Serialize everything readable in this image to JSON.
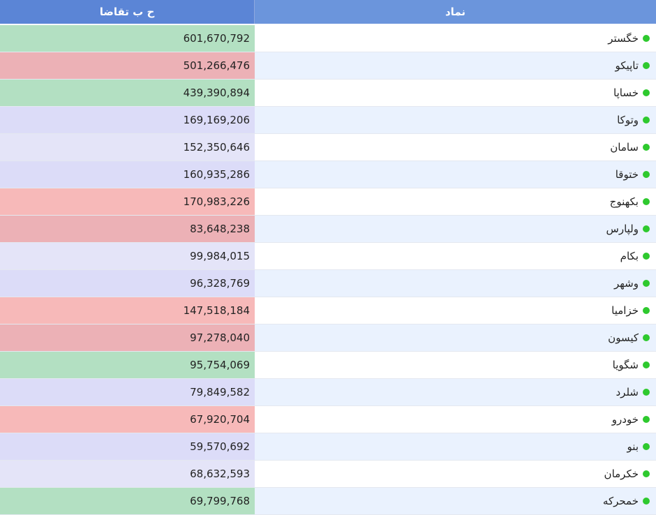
{
  "header": {
    "value_col": "ح ب تقاضا",
    "symbol_col": "نماد"
  },
  "colors": {
    "green": "#b3e0c2",
    "red": "#ecb1b6",
    "lightred": "#f7b9b9",
    "lavender": "#dcdcf8",
    "lightlavender": "#e4e4f8",
    "rowWhite": "#ffffff",
    "rowBlue": "#eaf2fe",
    "dot": "#2ec92e"
  },
  "rows": [
    {
      "symbol": "خگستر",
      "value": "601,670,792",
      "tone": "green"
    },
    {
      "symbol": "تاپیکو",
      "value": "501,266,476",
      "tone": "red"
    },
    {
      "symbol": "خساپا",
      "value": "439,390,894",
      "tone": "green"
    },
    {
      "symbol": "وتوکا",
      "value": "169,169,206",
      "tone": "lavender"
    },
    {
      "symbol": "سامان",
      "value": "152,350,646",
      "tone": "lightlavender"
    },
    {
      "symbol": "ختوقا",
      "value": "160,935,286",
      "tone": "lavender"
    },
    {
      "symbol": "بکهنوج",
      "value": "170,983,226",
      "tone": "lightred"
    },
    {
      "symbol": "ولپارس",
      "value": "83,648,238",
      "tone": "red"
    },
    {
      "symbol": "بکام",
      "value": "99,984,015",
      "tone": "lightlavender"
    },
    {
      "symbol": "وشهر",
      "value": "96,328,769",
      "tone": "lavender"
    },
    {
      "symbol": "خزامیا",
      "value": "147,518,184",
      "tone": "lightred"
    },
    {
      "symbol": "کیسون",
      "value": "97,278,040",
      "tone": "red"
    },
    {
      "symbol": "شگویا",
      "value": "95,754,069",
      "tone": "green"
    },
    {
      "symbol": "شلرد",
      "value": "79,849,582",
      "tone": "lavender"
    },
    {
      "symbol": "خودرو",
      "value": "67,920,704",
      "tone": "lightred"
    },
    {
      "symbol": "بنو",
      "value": "59,570,692",
      "tone": "lavender"
    },
    {
      "symbol": "خکرمان",
      "value": "68,632,593",
      "tone": "lightlavender"
    },
    {
      "symbol": "خمحرکه",
      "value": "69,799,768",
      "tone": "green"
    }
  ]
}
